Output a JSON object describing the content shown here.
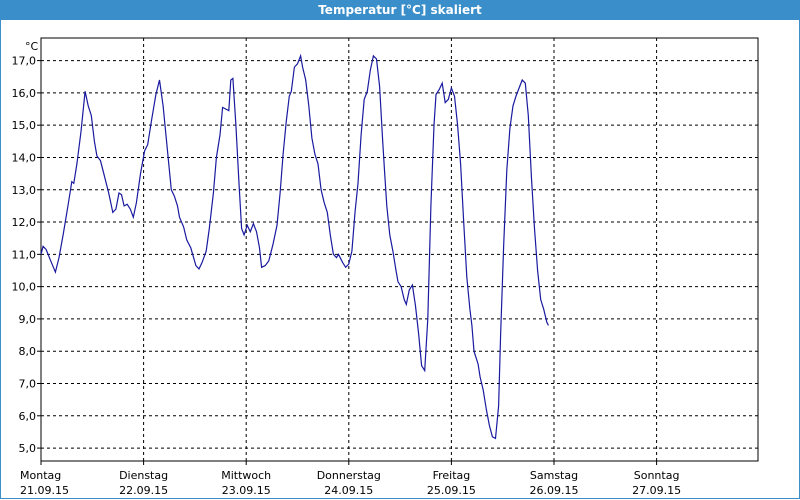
{
  "window": {
    "title": "Temperatur [°C] skaliert"
  },
  "chart_data": {
    "type": "line",
    "unit_label": "°C",
    "ylim": [
      4.6,
      17.7
    ],
    "xlim": [
      0,
      7
    ],
    "grid": true,
    "y_ticks": [
      {
        "value": 5.0,
        "label": "5,0"
      },
      {
        "value": 6.0,
        "label": "6,0"
      },
      {
        "value": 7.0,
        "label": "7,0"
      },
      {
        "value": 8.0,
        "label": "8,0"
      },
      {
        "value": 9.0,
        "label": "9,0"
      },
      {
        "value": 10.0,
        "label": "10,0"
      },
      {
        "value": 11.0,
        "label": "11,0"
      },
      {
        "value": 12.0,
        "label": "12,0"
      },
      {
        "value": 13.0,
        "label": "13,0"
      },
      {
        "value": 14.0,
        "label": "14,0"
      },
      {
        "value": 15.0,
        "label": "15,0"
      },
      {
        "value": 16.0,
        "label": "16,0"
      },
      {
        "value": 17.0,
        "label": "17,0"
      }
    ],
    "x_ticks": [
      {
        "value": 0,
        "day": "Montag",
        "date": "21.09.15"
      },
      {
        "value": 1,
        "day": "Dienstag",
        "date": "22.09.15"
      },
      {
        "value": 2,
        "day": "Mittwoch",
        "date": "23.09.15"
      },
      {
        "value": 3,
        "day": "Donnerstag",
        "date": "24.09.15"
      },
      {
        "value": 4,
        "day": "Freitag",
        "date": "25.09.15"
      },
      {
        "value": 5,
        "day": "Samstag",
        "date": "26.09.15"
      },
      {
        "value": 6,
        "day": "Sonntag",
        "date": "27.09.15"
      }
    ],
    "series": [
      {
        "color": "#1a1aa0",
        "points": [
          [
            0.0,
            11.0
          ],
          [
            0.02,
            11.25
          ],
          [
            0.05,
            11.15
          ],
          [
            0.095,
            10.8
          ],
          [
            0.14,
            10.45
          ],
          [
            0.175,
            10.9
          ],
          [
            0.215,
            11.6
          ],
          [
            0.265,
            12.55
          ],
          [
            0.3,
            13.25
          ],
          [
            0.32,
            13.2
          ],
          [
            0.35,
            13.8
          ],
          [
            0.39,
            14.8
          ],
          [
            0.43,
            16.05
          ],
          [
            0.46,
            15.6
          ],
          [
            0.49,
            15.3
          ],
          [
            0.52,
            14.5
          ],
          [
            0.545,
            14.05
          ],
          [
            0.58,
            13.9
          ],
          [
            0.62,
            13.4
          ],
          [
            0.66,
            12.9
          ],
          [
            0.7,
            12.3
          ],
          [
            0.73,
            12.4
          ],
          [
            0.76,
            12.9
          ],
          [
            0.785,
            12.85
          ],
          [
            0.81,
            12.5
          ],
          [
            0.84,
            12.55
          ],
          [
            0.87,
            12.4
          ],
          [
            0.9,
            12.15
          ],
          [
            0.93,
            12.6
          ],
          [
            0.97,
            13.5
          ],
          [
            1.01,
            14.2
          ],
          [
            1.04,
            14.4
          ],
          [
            1.08,
            15.2
          ],
          [
            1.12,
            15.95
          ],
          [
            1.155,
            16.4
          ],
          [
            1.19,
            15.6
          ],
          [
            1.23,
            14.3
          ],
          [
            1.27,
            13.0
          ],
          [
            1.3,
            12.8
          ],
          [
            1.33,
            12.5
          ],
          [
            1.35,
            12.15
          ],
          [
            1.39,
            11.85
          ],
          [
            1.42,
            11.45
          ],
          [
            1.46,
            11.2
          ],
          [
            1.51,
            10.65
          ],
          [
            1.54,
            10.55
          ],
          [
            1.57,
            10.75
          ],
          [
            1.61,
            11.1
          ],
          [
            1.64,
            11.8
          ],
          [
            1.68,
            12.9
          ],
          [
            1.71,
            14.0
          ],
          [
            1.745,
            14.7
          ],
          [
            1.77,
            15.55
          ],
          [
            1.8,
            15.5
          ],
          [
            1.83,
            15.45
          ],
          [
            1.85,
            16.4
          ],
          [
            1.87,
            16.45
          ],
          [
            1.9,
            15.0
          ],
          [
            1.93,
            13.2
          ],
          [
            1.955,
            11.8
          ],
          [
            1.98,
            11.6
          ],
          [
            2.01,
            11.9
          ],
          [
            2.04,
            11.7
          ],
          [
            2.07,
            11.95
          ],
          [
            2.1,
            11.7
          ],
          [
            2.13,
            11.2
          ],
          [
            2.15,
            10.6
          ],
          [
            2.185,
            10.65
          ],
          [
            2.22,
            10.8
          ],
          [
            2.26,
            11.3
          ],
          [
            2.3,
            11.9
          ],
          [
            2.33,
            12.9
          ],
          [
            2.36,
            14.1
          ],
          [
            2.39,
            15.1
          ],
          [
            2.42,
            15.9
          ],
          [
            2.44,
            16.05
          ],
          [
            2.47,
            16.8
          ],
          [
            2.5,
            16.9
          ],
          [
            2.53,
            17.15
          ],
          [
            2.55,
            16.8
          ],
          [
            2.58,
            16.4
          ],
          [
            2.61,
            15.6
          ],
          [
            2.64,
            14.6
          ],
          [
            2.67,
            14.1
          ],
          [
            2.7,
            13.8
          ],
          [
            2.73,
            13.0
          ],
          [
            2.76,
            12.6
          ],
          [
            2.79,
            12.3
          ],
          [
            2.82,
            11.6
          ],
          [
            2.85,
            11.0
          ],
          [
            2.88,
            10.9
          ],
          [
            2.9,
            11.0
          ],
          [
            2.94,
            10.75
          ],
          [
            2.97,
            10.6
          ],
          [
            3.0,
            10.7
          ],
          [
            3.03,
            11.1
          ],
          [
            3.06,
            12.3
          ],
          [
            3.09,
            13.2
          ],
          [
            3.12,
            14.7
          ],
          [
            3.15,
            15.8
          ],
          [
            3.18,
            16.05
          ],
          [
            3.21,
            16.7
          ],
          [
            3.24,
            17.15
          ],
          [
            3.27,
            17.05
          ],
          [
            3.3,
            16.2
          ],
          [
            3.33,
            14.5
          ],
          [
            3.35,
            13.5
          ],
          [
            3.37,
            12.5
          ],
          [
            3.4,
            11.6
          ],
          [
            3.43,
            11.1
          ],
          [
            3.46,
            10.5
          ],
          [
            3.48,
            10.15
          ],
          [
            3.51,
            10.0
          ],
          [
            3.54,
            9.6
          ],
          [
            3.56,
            9.45
          ],
          [
            3.59,
            9.9
          ],
          [
            3.62,
            10.05
          ],
          [
            3.65,
            9.4
          ],
          [
            3.68,
            8.55
          ],
          [
            3.71,
            7.55
          ],
          [
            3.74,
            7.4
          ],
          [
            3.77,
            9.0
          ],
          [
            3.8,
            12.5
          ],
          [
            3.83,
            15.0
          ],
          [
            3.85,
            15.95
          ],
          [
            3.88,
            16.1
          ],
          [
            3.91,
            16.3
          ],
          [
            3.94,
            15.7
          ],
          [
            3.97,
            15.8
          ],
          [
            4.0,
            16.15
          ],
          [
            4.03,
            15.9
          ],
          [
            4.06,
            15.0
          ],
          [
            4.09,
            13.8
          ],
          [
            4.12,
            12.0
          ],
          [
            4.15,
            10.3
          ],
          [
            4.18,
            9.3
          ],
          [
            4.2,
            8.8
          ],
          [
            4.22,
            8.0
          ],
          [
            4.26,
            7.6
          ],
          [
            4.28,
            7.2
          ],
          [
            4.31,
            6.8
          ],
          [
            4.34,
            6.2
          ],
          [
            4.37,
            5.7
          ],
          [
            4.4,
            5.35
          ],
          [
            4.43,
            5.3
          ],
          [
            4.46,
            6.3
          ],
          [
            4.48,
            8.5
          ],
          [
            4.51,
            11.3
          ],
          [
            4.54,
            13.6
          ],
          [
            4.57,
            14.9
          ],
          [
            4.6,
            15.6
          ],
          [
            4.63,
            15.9
          ],
          [
            4.66,
            16.15
          ],
          [
            4.69,
            16.4
          ],
          [
            4.72,
            16.3
          ],
          [
            4.75,
            15.3
          ],
          [
            4.78,
            13.4
          ],
          [
            4.81,
            11.8
          ],
          [
            4.84,
            10.5
          ],
          [
            4.87,
            9.6
          ],
          [
            4.9,
            9.3
          ],
          [
            4.93,
            8.9
          ],
          [
            4.945,
            8.8
          ]
        ]
      }
    ]
  }
}
